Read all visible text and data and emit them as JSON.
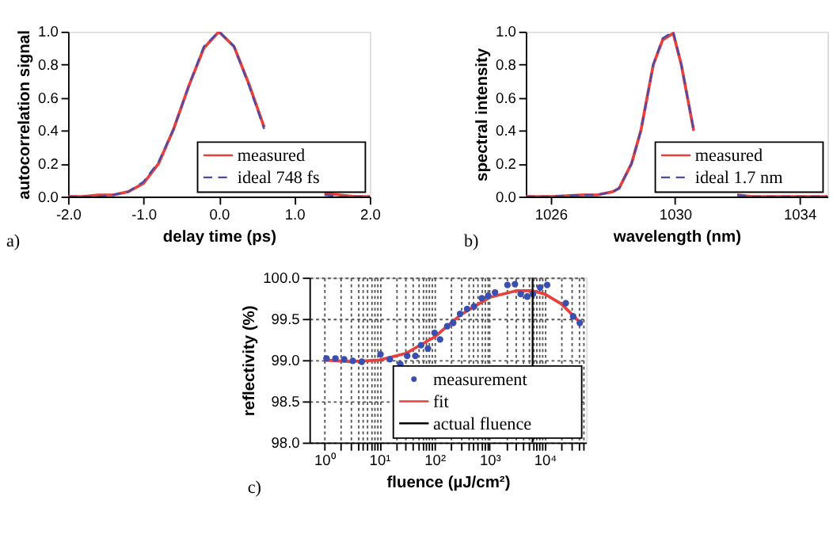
{
  "chart_data": [
    {
      "type": "line",
      "xlabel": "delay time (ps)",
      "ylabel": "autocorrelation signal",
      "annotations": [
        "a)"
      ],
      "legend": "bottom right",
      "x": [
        -2.0,
        -1.8,
        -1.6,
        -1.4,
        -1.2,
        -1.0,
        -0.8,
        -0.6,
        -0.4,
        -0.2,
        0.0,
        0.2,
        0.4,
        0.6,
        0.8,
        1.0,
        1.2,
        1.4,
        1.6,
        1.8,
        2.0
      ],
      "series": [
        {
          "name": "measured",
          "color": "#e8413c",
          "line_style": "solid",
          "values": [
            0,
            0,
            0.01,
            0.01,
            0.03,
            0.08,
            0.2,
            0.41,
            0.67,
            0.9,
            1.0,
            0.91,
            0.68,
            0.42,
            null,
            null,
            null,
            0.02,
            0.01,
            0,
            0
          ]
        },
        {
          "name": "ideal 748 fs",
          "color": "#4a4aa8",
          "line_style": "dashed",
          "values": [
            0,
            0,
            0,
            0.01,
            0.03,
            0.09,
            0.21,
            0.41,
            0.67,
            0.91,
            1.0,
            0.91,
            0.67,
            0.41,
            null,
            null,
            null,
            0.01,
            0,
            0,
            0
          ]
        }
      ],
      "xlim": [
        -2.0,
        2.0
      ],
      "xticks": [
        {
          "value": -2,
          "label": "-2.0"
        },
        {
          "value": -1,
          "label": "-1.0"
        },
        {
          "value": 0,
          "label": "0.0"
        },
        {
          "value": 1,
          "label": "1.0"
        },
        {
          "value": 2,
          "label": "2.0"
        }
      ],
      "ylim": [
        0,
        1
      ],
      "yticks": [
        {
          "value": 0,
          "label": "0.0"
        },
        0.2,
        0.4,
        0.6,
        0.8,
        {
          "value": 1,
          "label": "1.0"
        }
      ]
    },
    {
      "type": "line",
      "xlabel": "wavelength (nm)",
      "ylabel": "spectral intensity",
      "annotations": [
        "b)"
      ],
      "legend": "bottom right",
      "x": [
        1025.2,
        1026,
        1027,
        1027.5,
        1028,
        1028.2,
        1028.6,
        1028.9,
        1029.1,
        1029.3,
        1029.6,
        1029.94,
        1030.2,
        1030.4,
        1030.6,
        1030.95,
        1031.5,
        1032,
        1032.5,
        1033,
        1034,
        1034.9
      ],
      "series": [
        {
          "name": "measured",
          "color": "#e8413c",
          "line_style": "solid",
          "values": [
            0,
            0,
            0.01,
            0.01,
            0.03,
            0.05,
            0.2,
            0.4,
            0.6,
            0.8,
            0.95,
            0.99,
            0.8,
            0.6,
            0.4,
            null,
            null,
            0.01,
            0,
            0,
            0,
            0
          ]
        },
        {
          "name": "ideal 1.7 nm",
          "color": "#4a4aa8",
          "line_style": "dashed",
          "values": [
            0,
            0,
            0.01,
            0.01,
            0.03,
            0.05,
            0.2,
            0.4,
            0.6,
            0.8,
            0.96,
            1.0,
            0.8,
            0.6,
            0.4,
            null,
            null,
            0.01,
            0,
            0,
            0,
            0
          ]
        }
      ],
      "xlim": [
        1025.2,
        1034.9
      ],
      "xticks": [
        1026,
        1030,
        1034
      ],
      "ylim": [
        0,
        1
      ],
      "yticks": [
        {
          "value": 0,
          "label": "0.0"
        },
        0.2,
        0.4,
        0.6,
        0.8,
        {
          "value": 1,
          "label": "1.0"
        }
      ]
    },
    {
      "type": "scatter",
      "xlabel": "fluence (µJ/cm²)",
      "ylabel": "reflectivity (%)",
      "annotations": [
        "c)"
      ],
      "legend": "bottom right",
      "log": "x",
      "grid": true,
      "series": [
        {
          "name": "measurement",
          "type": "scatter",
          "color": "#3a4fb0",
          "x": [
            1.1,
            1.6,
            2.3,
            3.3,
            4.8,
            10.5,
            15.5,
            24,
            32,
            45,
            57,
            76,
            100,
            126,
            170,
            218,
            290,
            390,
            520,
            720,
            940,
            1250,
            2100,
            2870,
            3650,
            4800,
            6100,
            8200,
            11000,
            24000,
            32600,
            43000
          ],
          "values": [
            99.02,
            99.02,
            99.01,
            98.99,
            98.98,
            99.07,
            99.01,
            98.95,
            99.05,
            99.05,
            99.18,
            99.14,
            99.33,
            99.25,
            99.41,
            99.45,
            99.56,
            99.62,
            99.65,
            99.75,
            99.78,
            99.82,
            99.91,
            99.92,
            99.8,
            99.77,
            99.8,
            99.88,
            99.91,
            99.69,
            99.53,
            99.45
          ]
        },
        {
          "name": "fit",
          "type": "line",
          "color": "#e8413c",
          "line_style": "solid",
          "x": [
            1,
            3,
            10,
            30,
            100,
            300,
            1000,
            3000,
            6000,
            10000,
            20000,
            40000
          ],
          "values": [
            99.0,
            98.98,
            99.0,
            99.08,
            99.28,
            99.55,
            99.76,
            99.84,
            99.84,
            99.8,
            99.68,
            99.48
          ]
        }
      ],
      "ref_lines": [
        {
          "axis": "x",
          "value": 6000,
          "label": "actual fluence",
          "color": "#000000"
        }
      ],
      "xlim": [
        0.54,
        56000
      ],
      "xticks": [
        {
          "value": 1,
          "label": "10⁰"
        },
        {
          "value": 2,
          "label": null
        },
        {
          "value": 3,
          "label": null
        },
        {
          "value": 4,
          "label": null
        },
        {
          "value": 5,
          "label": null
        },
        {
          "value": 6,
          "label": null
        },
        {
          "value": 7,
          "label": null
        },
        {
          "value": 8,
          "label": null
        },
        {
          "value": 9,
          "label": null
        },
        {
          "value": 10,
          "label": "10¹"
        },
        {
          "value": 20,
          "label": null
        },
        {
          "value": 30,
          "label": null
        },
        {
          "value": 40,
          "label": null
        },
        {
          "value": 50,
          "label": null
        },
        {
          "value": 60,
          "label": null
        },
        {
          "value": 70,
          "label": null
        },
        {
          "value": 80,
          "label": null
        },
        {
          "value": 90,
          "label": null
        },
        {
          "value": 100,
          "label": "10²"
        },
        {
          "value": 200,
          "label": null
        },
        {
          "value": 300,
          "label": null
        },
        {
          "value": 400,
          "label": null
        },
        {
          "value": 500,
          "label": null
        },
        {
          "value": 600,
          "label": null
        },
        {
          "value": 700,
          "label": null
        },
        {
          "value": 800,
          "label": null
        },
        {
          "value": 900,
          "label": null
        },
        {
          "value": 1000,
          "label": "10³"
        },
        {
          "value": 2000,
          "label": null
        },
        {
          "value": 3000,
          "label": null
        },
        {
          "value": 4000,
          "label": null
        },
        {
          "value": 5000,
          "label": null
        },
        {
          "value": 6000,
          "label": null
        },
        {
          "value": 7000,
          "label": null
        },
        {
          "value": 8000,
          "label": null
        },
        {
          "value": 9000,
          "label": null
        },
        {
          "value": 10000,
          "label": "10⁴"
        },
        {
          "value": 20000,
          "label": null
        },
        {
          "value": 30000,
          "label": null
        },
        {
          "value": 40000,
          "label": null
        },
        {
          "value": 50000,
          "label": null
        }
      ],
      "ylim": [
        98.0,
        100.0
      ],
      "yticks": [
        {
          "value": 98,
          "label": "98.0"
        },
        98.5,
        {
          "value": 99,
          "label": "99.0"
        },
        99.5,
        {
          "value": 100,
          "label": "100.0"
        }
      ]
    }
  ]
}
